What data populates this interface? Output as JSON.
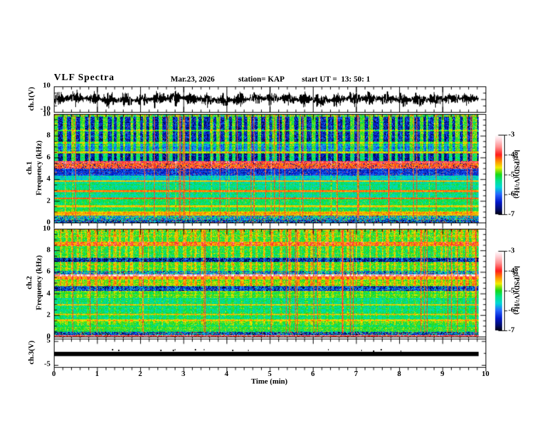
{
  "title": {
    "main": "VLF Spectra",
    "date": "Mar.23, 2026",
    "station": "station= KAP",
    "start_ut": "start UT =  13: 50: 1"
  },
  "x_axis": {
    "label": "Time (min)",
    "range": [
      0,
      10
    ],
    "major_ticks": [
      0,
      1,
      2,
      3,
      4,
      5,
      6,
      7,
      8,
      9,
      10
    ],
    "minor_interval_min": 0.2,
    "data_end_min": 9.84
  },
  "colorbars": [
    {
      "label": "log(PSD)(V²/Hz)",
      "ticks": [
        -3,
        -4,
        -5,
        -6,
        -7
      ],
      "range_top": -3,
      "range_bottom": -7
    },
    {
      "label": "log(PSD)(V²/Hz)",
      "ticks": [
        -3,
        -4,
        -5,
        -6,
        -7
      ],
      "range_top": -3,
      "range_bottom": -7
    }
  ],
  "palette_stops": [
    [
      -3.0,
      [
        255,
        255,
        255
      ]
    ],
    [
      -3.25,
      [
        255,
        212,
        218
      ]
    ],
    [
      -3.6,
      [
        255,
        144,
        144
      ]
    ],
    [
      -4.0,
      [
        255,
        28,
        28
      ]
    ],
    [
      -4.35,
      [
        255,
        149,
        0
      ]
    ],
    [
      -4.65,
      [
        242,
        238,
        0
      ]
    ],
    [
      -5.0,
      [
        23,
        217,
        23
      ]
    ],
    [
      -5.3,
      [
        0,
        228,
        137
      ]
    ],
    [
      -5.65,
      [
        0,
        215,
        215
      ]
    ],
    [
      -6.0,
      [
        38,
        103,
        255
      ]
    ],
    [
      -6.4,
      [
        0,
        24,
        204
      ]
    ],
    [
      -6.75,
      [
        0,
        13,
        112
      ]
    ],
    [
      -7.0,
      [
        0,
        3,
        24
      ]
    ]
  ],
  "chart_data": {
    "type": "heatmap",
    "figure": "VLF multi-panel spectra, x axis Time (min) 0-10, data ends at 9.84 min",
    "panels": [
      {
        "id": "ch1_waveform",
        "type": "line",
        "ylabel": "ch.1(V)",
        "yticks": [
          10,
          -10
        ],
        "yrange": [
          -10,
          10
        ],
        "description": "dense noisy waveform, amplitude-modulated bursts every ~0.375 min, envelope 2.5 to 8 V, occasional spikes to -10 V",
        "burst_period_min": 0.375,
        "envelope_v": [
          2.5,
          8
        ]
      },
      {
        "id": "ch1_spectrogram",
        "type": "heatmap",
        "ylabel_ch": "ch.1",
        "ylabel_freq": "Frequency (kHz)",
        "yticks": [
          0,
          2,
          4,
          6,
          8,
          10
        ],
        "yrange_khz": [
          0,
          10
        ],
        "zrange_log_psd": [
          -7,
          -3
        ],
        "band_format": [
          "f_low_khz",
          "f_high_khz",
          "base_level",
          "jitter",
          "blue_stripe_amp",
          "red_speckle_prob",
          "dark_speckle_prob"
        ],
        "bands": [
          [
            9.75,
            10.01,
            -4.7,
            0.9,
            -0.3,
            0,
            0
          ],
          [
            8.55,
            9.75,
            -5.0,
            0.45,
            -1.45,
            0.004,
            0
          ],
          [
            8.4,
            8.55,
            -4.55,
            0.3,
            -0.5,
            0,
            0
          ],
          [
            7.5,
            8.4,
            -5.0,
            0.45,
            -1.45,
            0.004,
            0
          ],
          [
            7.3,
            7.5,
            -4.6,
            0.3,
            -0.5,
            0,
            0
          ],
          [
            6.55,
            7.3,
            -5.0,
            0.4,
            -0.95,
            0.003,
            0
          ],
          [
            6.35,
            6.55,
            -4.4,
            0.3,
            -0.3,
            0,
            0
          ],
          [
            5.65,
            6.35,
            -5.2,
            0.45,
            -1.35,
            0.004,
            0
          ],
          [
            5.5,
            5.65,
            -3.75,
            0.3,
            0,
            0,
            0.05
          ],
          [
            4.95,
            5.5,
            -4.05,
            0.55,
            0,
            0,
            0.12
          ],
          [
            4.35,
            4.95,
            -6.3,
            0.5,
            0,
            0.05,
            0
          ],
          [
            3.9,
            4.35,
            -5.6,
            0.4,
            0,
            0.01,
            0
          ],
          [
            3.75,
            3.9,
            -4.45,
            0.25,
            0,
            0,
            0
          ],
          [
            2.95,
            3.75,
            -5.3,
            0.4,
            0,
            0.004,
            0
          ],
          [
            2.8,
            2.95,
            -4.35,
            0.3,
            0,
            0,
            0
          ],
          [
            2.3,
            2.8,
            -5.3,
            0.4,
            0,
            0.004,
            0
          ],
          [
            2.15,
            2.3,
            -4.1,
            0.3,
            0,
            0,
            0
          ],
          [
            1.55,
            2.15,
            -5.15,
            0.4,
            0,
            0.004,
            0
          ],
          [
            1.4,
            1.55,
            -4.6,
            0.25,
            0,
            0,
            0
          ],
          [
            1.0,
            1.4,
            -5.1,
            0.4,
            0,
            0.004,
            0
          ],
          [
            0.6,
            1.0,
            -4.45,
            0.35,
            0,
            0.01,
            0
          ],
          [
            0.25,
            0.6,
            -5.7,
            1.2,
            0,
            0.06,
            0
          ],
          [
            0.0,
            0.25,
            -6.2,
            1.4,
            0,
            0.1,
            0
          ]
        ],
        "features": "periodic dark-blue vertical blocks 8.5-9.8/7.5-8.4/5.7-6.4 kHz, strong red band 5.0-5.6 kHz, dark blue band 4.4-5.0 kHz, thin red lines 2.2 and 2.9 kHz, yellow band 0.6-1.0 kHz, dense dark mix below 0.6 kHz, ~34 thin red vertical lines",
        "gen": {
          "blue_blocks": true,
          "yellow_stripes": false,
          "red_lines": 34,
          "yellow_lines": 15,
          "seed": 101
        }
      },
      {
        "id": "ch2_spectrogram",
        "type": "heatmap",
        "ylabel_ch": "ch.2",
        "ylabel_freq": "Frequency (kHz)",
        "yticks": [
          0,
          2,
          4,
          6,
          8,
          10
        ],
        "yrange_khz": [
          0,
          10
        ],
        "zrange_log_psd": [
          -7,
          -3
        ],
        "band_format": [
          "f_low_khz",
          "f_high_khz",
          "base_level",
          "jitter",
          "blue_stripe_amp",
          "red_speckle_prob",
          "dark_speckle_prob"
        ],
        "bands": [
          [
            9.85,
            10.01,
            -4.7,
            0.8,
            0,
            0,
            0
          ],
          [
            8.8,
            9.85,
            -5.0,
            0.45,
            0,
            0.003,
            0
          ],
          [
            8.45,
            8.8,
            -4.3,
            0.5,
            0,
            0.01,
            0
          ],
          [
            7.3,
            8.45,
            -5.1,
            0.45,
            0,
            0.003,
            0
          ],
          [
            6.95,
            7.3,
            -6.5,
            1.1,
            0,
            0.01,
            0
          ],
          [
            6.1,
            6.95,
            -5.0,
            0.4,
            0,
            0.003,
            0
          ],
          [
            5.8,
            6.1,
            -5.9,
            1.2,
            0,
            0.08,
            0
          ],
          [
            5.6,
            5.8,
            -3.55,
            0.35,
            0,
            0,
            0
          ],
          [
            5.3,
            5.6,
            -4.5,
            0.3,
            0,
            0,
            0
          ],
          [
            4.7,
            5.3,
            -4.85,
            0.4,
            0,
            0.004,
            0
          ],
          [
            4.25,
            4.7,
            -6.35,
            1.0,
            0,
            0.01,
            0
          ],
          [
            3.55,
            4.25,
            -5.0,
            0.35,
            0,
            0.003,
            0
          ],
          [
            3.0,
            3.55,
            -5.3,
            0.4,
            0,
            0,
            0
          ],
          [
            2.85,
            3.0,
            -4.6,
            0.25,
            0,
            0,
            0
          ],
          [
            2.1,
            2.85,
            -5.35,
            0.4,
            0,
            0,
            0
          ],
          [
            1.95,
            2.1,
            -4.65,
            0.25,
            0,
            0,
            0
          ],
          [
            1.55,
            1.95,
            -5.3,
            0.4,
            0,
            0,
            0
          ],
          [
            1.4,
            1.55,
            -4.6,
            0.25,
            0,
            0,
            0
          ],
          [
            0.45,
            1.4,
            -5.05,
            0.4,
            0,
            0.003,
            0
          ],
          [
            0.12,
            0.45,
            -6.1,
            1.4,
            0,
            0.08,
            0
          ],
          [
            0.0,
            0.12,
            -3.8,
            0.5,
            0,
            0,
            0
          ]
        ],
        "features": "green/yellow overall, orange band 8.45-8.8 kHz, grey-dark bands 6.95-7.3 and 4.25-4.7 kHz, maroon lines 5.8-6.1 kHz, whitish gap 5.6-5.8 kHz, thin yellow lines 1.5/2.0/2.9 kHz, dark mixed band below 0.45 kHz, yellow vertical striping, ~26 thin red vertical lines",
        "gen": {
          "blue_blocks": false,
          "yellow_stripes": true,
          "red_lines": 26,
          "yellow_lines": 0,
          "long_yellow_col": 128,
          "seed": 202
        }
      },
      {
        "id": "ch3_level",
        "type": "line",
        "ylabel": "ch.3(V)",
        "yticks": [
          5,
          -5
        ],
        "yrange": [
          -6,
          6
        ],
        "description": "flat saturated/clipped trace drawn as solid black bar from ~+0.5 V to ~-1.3 V across 0 to 9.84 min",
        "bar_v": [
          0.5,
          -1.3
        ]
      }
    ]
  }
}
